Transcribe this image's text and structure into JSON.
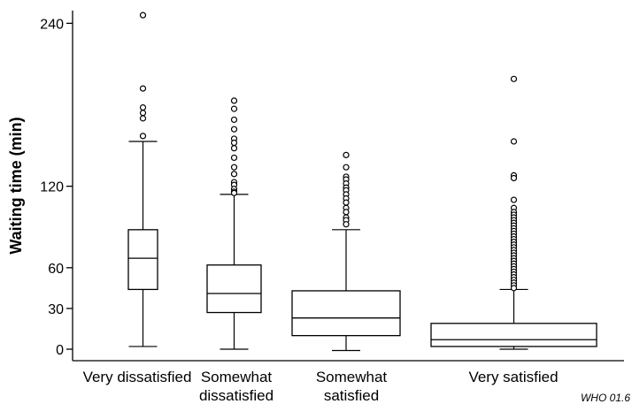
{
  "chart_data": {
    "type": "box",
    "ylabel": "Waiting time (min)",
    "yticks": [
      0,
      30,
      60,
      120,
      240
    ],
    "ylim": [
      0,
      250
    ],
    "grid": false,
    "source_note": "WHO 01.6",
    "categories": [
      {
        "lines": [
          "Very dissatisfied"
        ],
        "min": 2,
        "q1": 44,
        "median": 67,
        "q3": 88,
        "max": 153,
        "outliers": [
          246,
          192,
          178,
          174,
          170,
          157
        ]
      },
      {
        "lines": [
          "Somewhat",
          "dissatisfied"
        ],
        "min": 0,
        "q1": 27,
        "median": 41,
        "q3": 62,
        "max": 114,
        "outliers": [
          183,
          177,
          169,
          162,
          155,
          152,
          148,
          141,
          134,
          129,
          123,
          121,
          118,
          116,
          115
        ]
      },
      {
        "lines": [
          "Somewhat",
          "satisfied"
        ],
        "min": -1,
        "q1": 10,
        "median": 23,
        "q3": 43,
        "max": 88,
        "outliers": [
          143,
          134,
          127,
          125,
          122,
          119,
          117,
          114,
          111,
          108,
          104,
          101,
          97,
          95,
          92
        ]
      },
      {
        "lines": [
          "Very satisfied"
        ],
        "min": 0,
        "q1": 2,
        "median": 7,
        "q3": 19,
        "max": 44,
        "outliers": [
          199,
          153,
          128,
          126,
          110,
          104,
          101,
          99,
          97,
          95,
          93,
          91,
          89,
          87,
          85,
          83,
          81,
          79,
          77,
          75,
          73,
          71,
          69,
          67,
          65,
          63,
          61,
          59,
          57,
          55,
          53,
          51,
          49,
          47,
          45
        ]
      }
    ]
  }
}
